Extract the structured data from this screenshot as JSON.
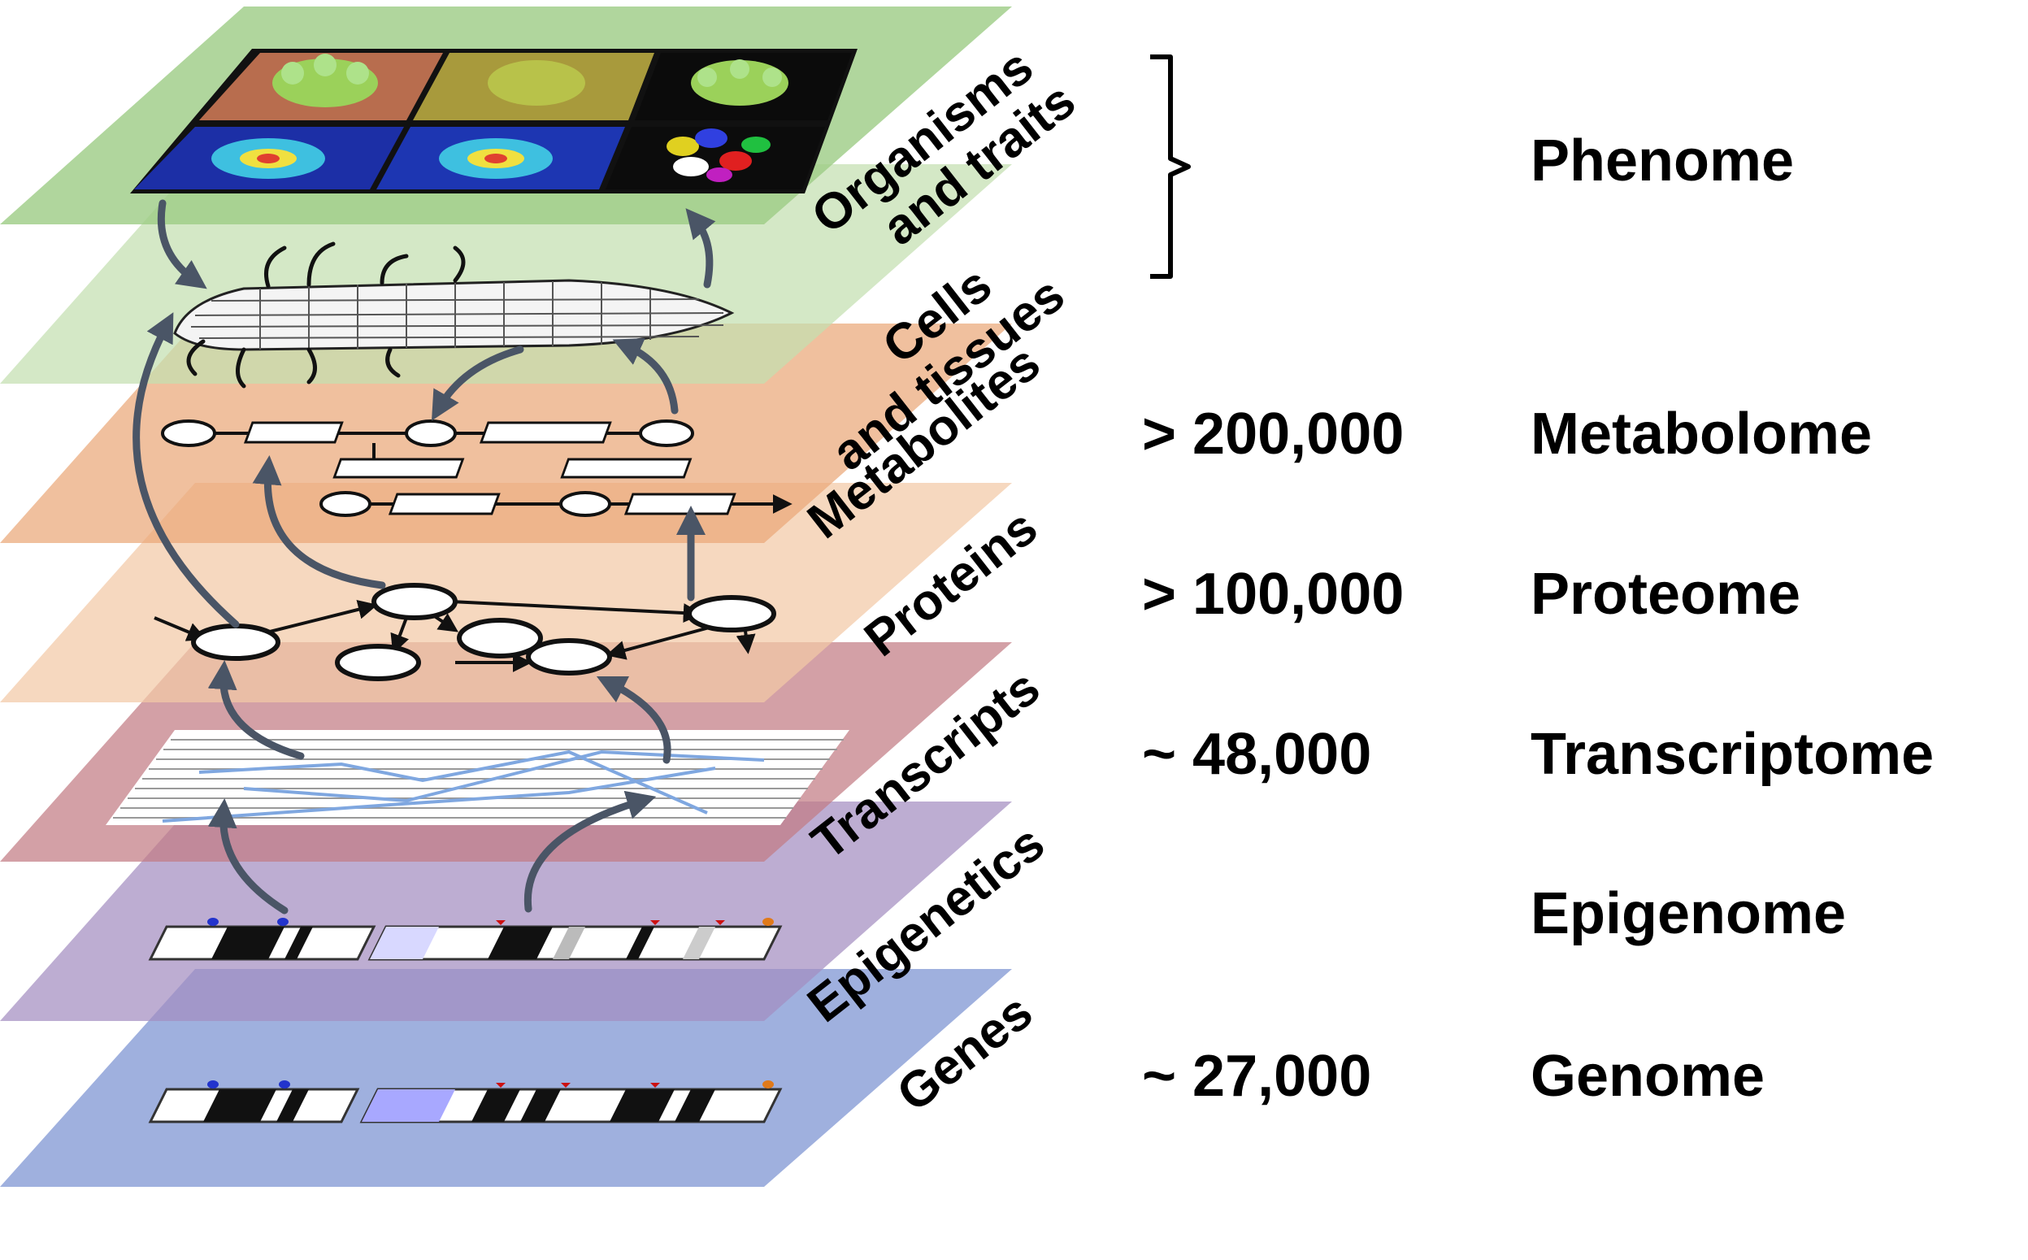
{
  "layers": [
    {
      "label": "Organisms",
      "label2": "and traits",
      "color": "#9ccc84"
    },
    {
      "label": "Cells",
      "label2": "and tissues",
      "color": "#c3dfb0"
    },
    {
      "label": "Metabolites",
      "label2": "",
      "color": "#eaa878"
    },
    {
      "label": "Proteins",
      "label2": "",
      "color": "#f3c9a6"
    },
    {
      "label": "Transcripts",
      "label2": "",
      "color": "#c27b84"
    },
    {
      "label": "Epigenetics",
      "label2": "",
      "color": "#a48dc0"
    },
    {
      "label": "Genes",
      "label2": "",
      "color": "#8ea2d8"
    }
  ],
  "omes": [
    {
      "name": "Phenome",
      "count": ""
    },
    {
      "name": "Metabolome",
      "count": "> 200,000"
    },
    {
      "name": "Proteome",
      "count": "> 100,000"
    },
    {
      "name": "Transcriptome",
      "count": "~ 48,000"
    },
    {
      "name": "Epigenome",
      "count": ""
    },
    {
      "name": "Genome",
      "count": "~ 27,000"
    }
  ],
  "colors": {
    "arrow": "#4a5566",
    "transcript_line": "#7fa7e0",
    "mark_blue": "#2233cc",
    "mark_red": "#cc1111",
    "mark_orange": "#e07a1a"
  }
}
